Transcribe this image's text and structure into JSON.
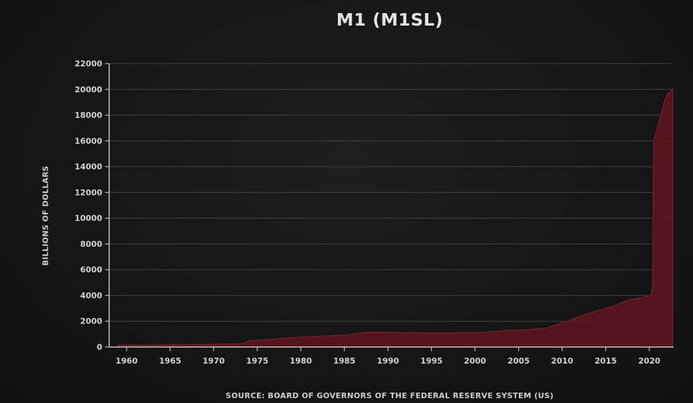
{
  "chart_data": {
    "type": "area",
    "title": "M1 (M1SL)",
    "xlabel": "",
    "ylabel": "BILLIONS OF DOLLARS",
    "source": "SOURCE: BOARD OF GOVERNORS OF THE FEDERAL RESERVE SYSTEM (US)",
    "xlim": [
      1958.0,
      2022.8
    ],
    "ylim": [
      0,
      22000
    ],
    "x_ticks": [
      "1960",
      "1965",
      "1970",
      "1975",
      "1980",
      "1985",
      "1990",
      "1995",
      "2000",
      "2005",
      "2010",
      "2015",
      "2020"
    ],
    "y_ticks": [
      "0",
      "2000",
      "4000",
      "6000",
      "8000",
      "10000",
      "12000",
      "14000",
      "16000",
      "18000",
      "20000",
      "22000"
    ],
    "grid": true,
    "fill_color": "#5a1620",
    "line_color": "#7a1f2c",
    "series": [
      {
        "x": [
          1959,
          1962,
          1965,
          1968,
          1971,
          1973.5,
          1974,
          1975,
          1977,
          1979,
          1981,
          1983,
          1985,
          1986,
          1987,
          1988,
          1990,
          1992,
          1994,
          1996,
          1998,
          2000,
          2002,
          2004,
          2006,
          2008,
          2009,
          2010,
          2011,
          2012,
          2013,
          2014,
          2015,
          2016,
          2017,
          2018,
          2019,
          2020.2,
          2020.4,
          2020.5,
          2021,
          2021.5,
          2022,
          2022.7
        ],
        "y": [
          140,
          145,
          165,
          190,
          230,
          260,
          480,
          520,
          620,
          730,
          800,
          870,
          920,
          1000,
          1100,
          1150,
          1150,
          1100,
          1100,
          1080,
          1100,
          1100,
          1200,
          1300,
          1350,
          1450,
          1650,
          1900,
          2100,
          2400,
          2600,
          2800,
          3000,
          3200,
          3500,
          3700,
          3800,
          4000,
          4900,
          16000,
          17200,
          18500,
          19600,
          20000
        ]
      }
    ]
  }
}
